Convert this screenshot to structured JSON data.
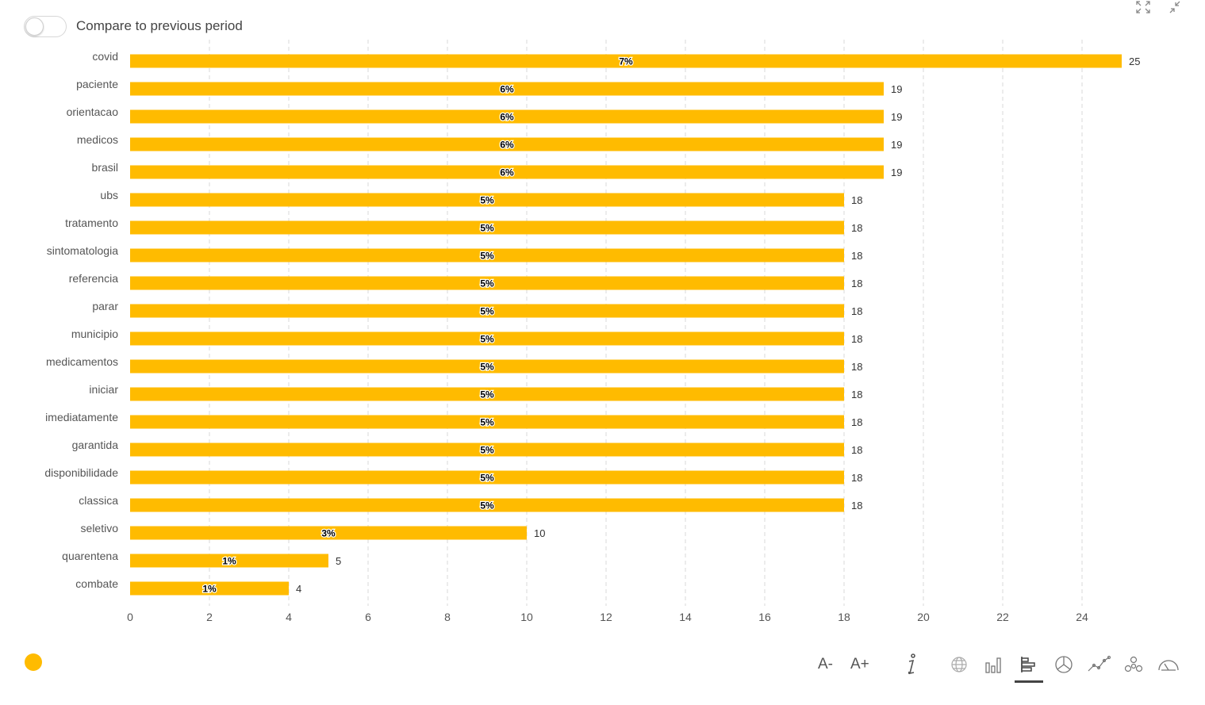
{
  "controls": {
    "compare_label": "Compare to previous period",
    "compare_enabled": false,
    "font_decrease": "A-",
    "font_increase": "A+",
    "icons": [
      "expand-icon",
      "collapse-icon",
      "info-icon",
      "world-map-icon",
      "column-chart-icon",
      "bar-chart-icon",
      "pie-chart-icon",
      "line-chart-icon",
      "network-icon",
      "gauge-icon"
    ],
    "active_chart_icon": "bar-chart-icon"
  },
  "colors": {
    "bar": "#FFBB00",
    "grid": "#d9d9d9",
    "legend_dot": "#FFBB00"
  },
  "chart_data": {
    "type": "bar",
    "orientation": "horizontal",
    "categories": [
      "covid",
      "paciente",
      "orientacao",
      "medicos",
      "brasil",
      "ubs",
      "tratamento",
      "sintomatologia",
      "referencia",
      "parar",
      "municipio",
      "medicamentos",
      "iniciar",
      "imediatamente",
      "garantida",
      "disponibilidade",
      "classica",
      "seletivo",
      "quarentena",
      "combate"
    ],
    "values": [
      25,
      19,
      19,
      19,
      19,
      18,
      18,
      18,
      18,
      18,
      18,
      18,
      18,
      18,
      18,
      18,
      18,
      10,
      5,
      4
    ],
    "percent_labels": [
      "7%",
      "6%",
      "6%",
      "6%",
      "6%",
      "5%",
      "5%",
      "5%",
      "5%",
      "5%",
      "5%",
      "5%",
      "5%",
      "5%",
      "5%",
      "5%",
      "5%",
      "3%",
      "1%",
      "1%"
    ],
    "x_ticks": [
      0,
      2,
      4,
      6,
      8,
      10,
      12,
      14,
      16,
      18,
      20,
      22,
      24
    ],
    "xlim": [
      0,
      26
    ],
    "grid": true,
    "legend": "bottom-left"
  }
}
